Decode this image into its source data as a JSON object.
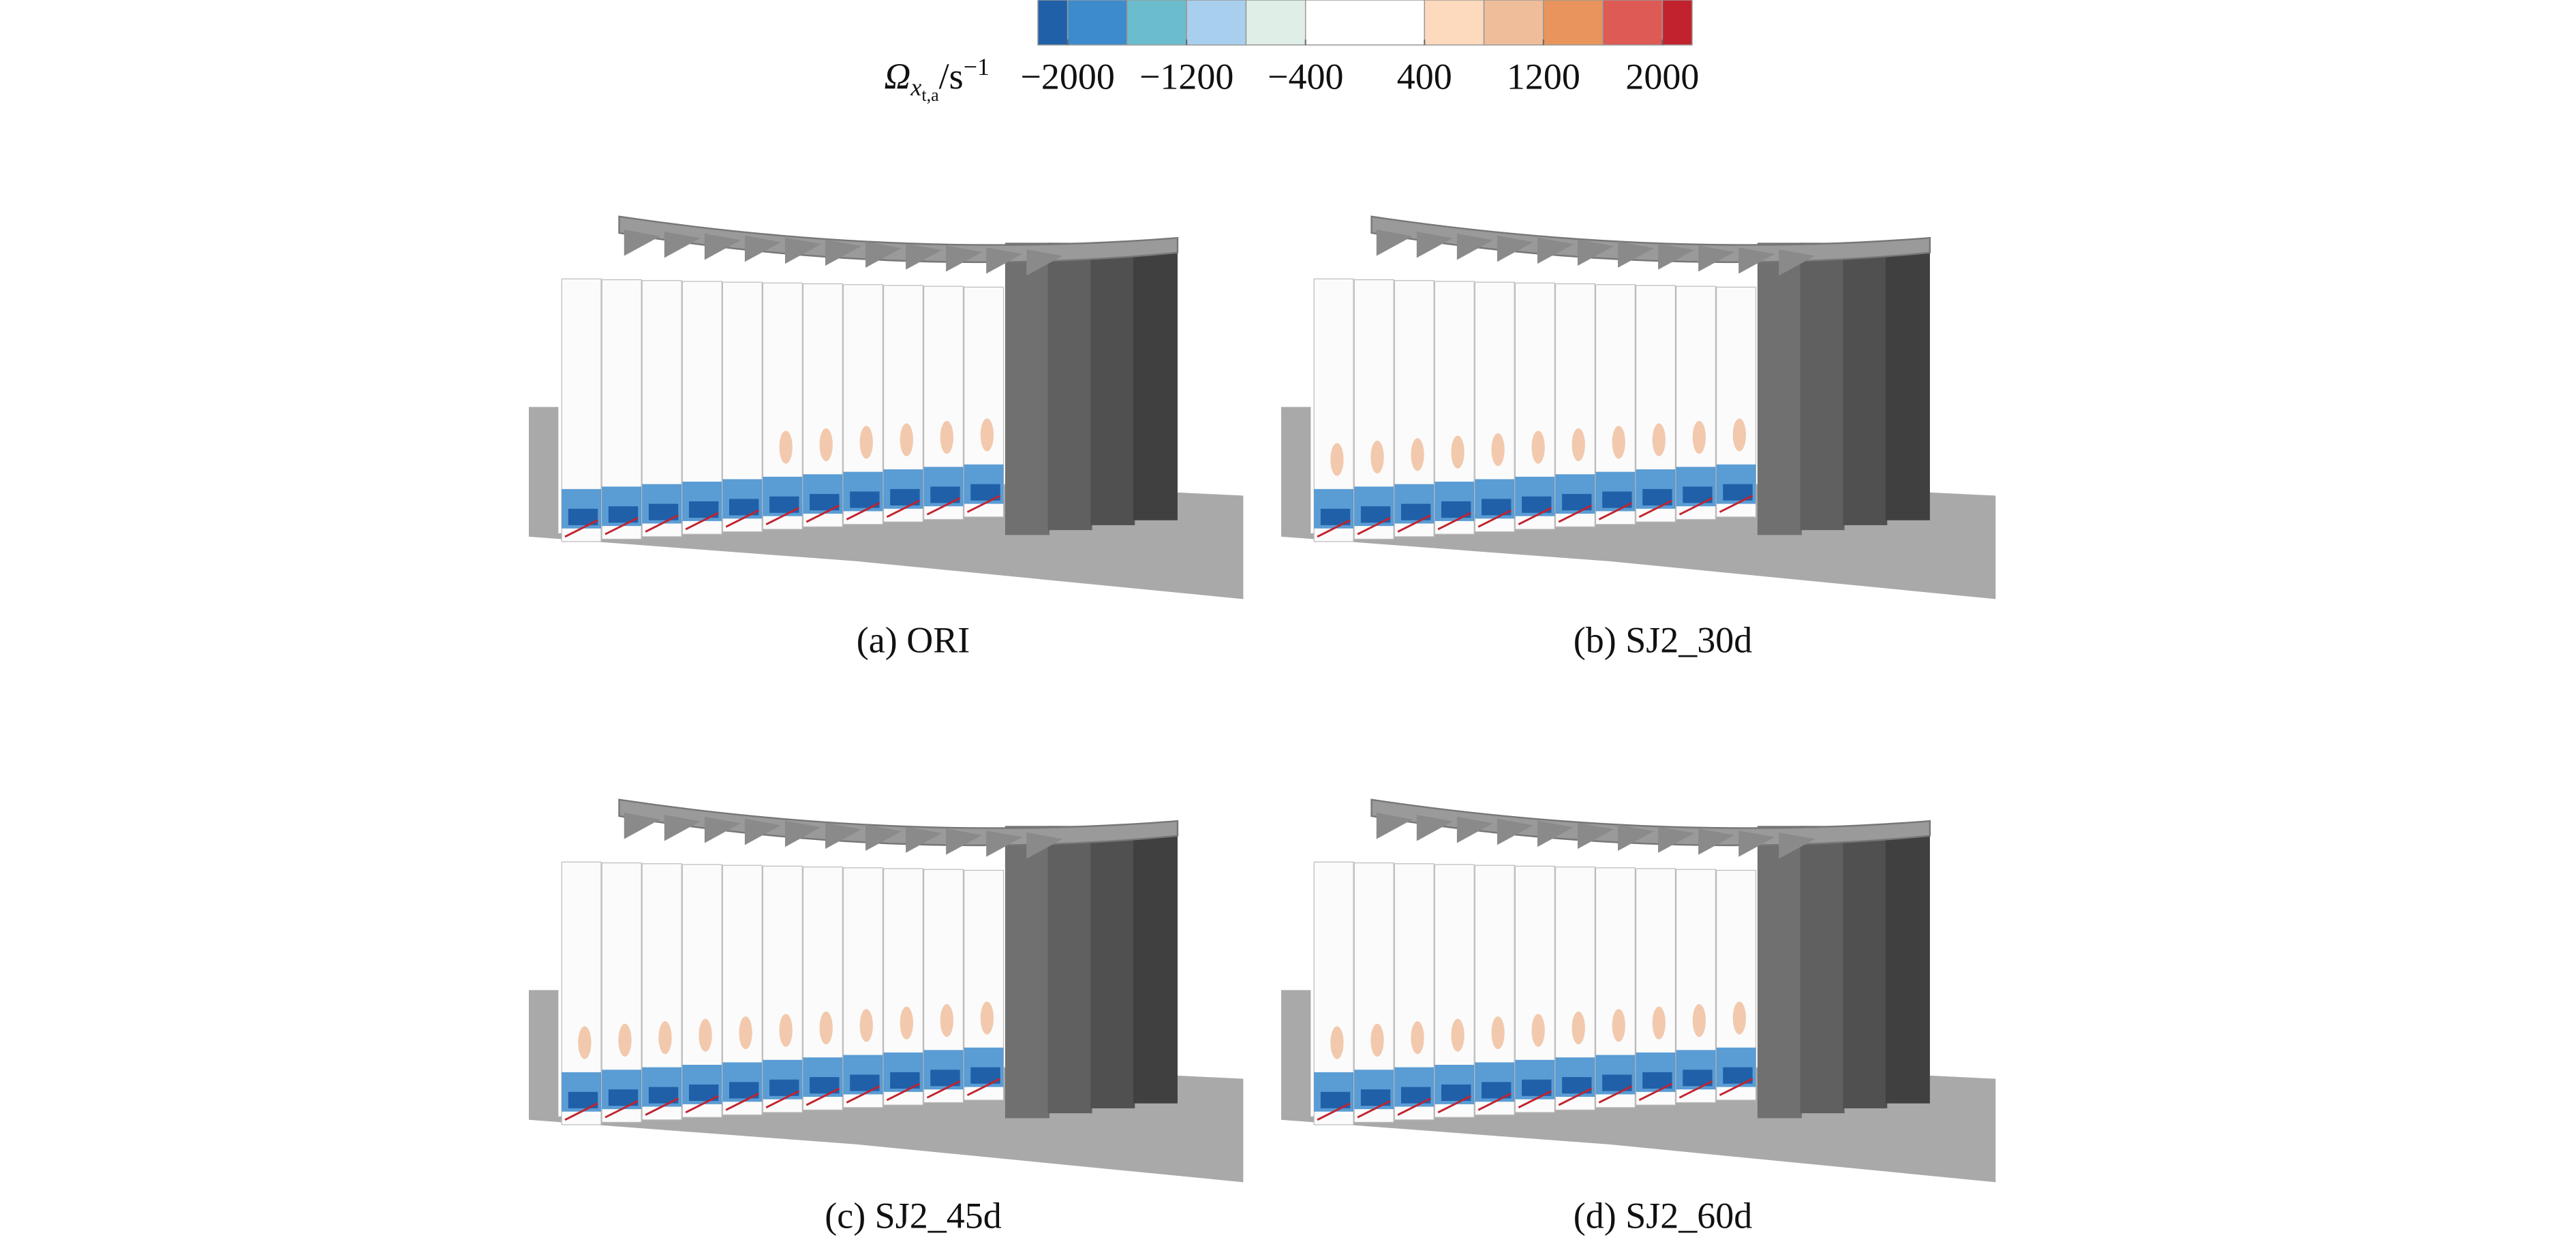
{
  "colorbar": {
    "symbol": "Ω",
    "subscript": "x",
    "sub_subscript": "t,a",
    "unit": "/s",
    "unit_exponent": "−1",
    "lim": [
      -2200,
      2200
    ],
    "boundaries": [
      -2000,
      -1600,
      -1200,
      -800,
      -400,
      400,
      800,
      1200,
      1600,
      2000
    ],
    "colors": [
      "#2060a8",
      "#3d8bcc",
      "#6bbccc",
      "#a9cfee",
      "#dfeee6",
      "#ffffff",
      "#fdd9bd",
      "#f0bd9a",
      "#e8945c",
      "#dd5a55",
      "#c2222e"
    ],
    "ticks": [
      {
        "value": -2000,
        "label": "−2000"
      },
      {
        "value": -1200,
        "label": "−1200"
      },
      {
        "value": -400,
        "label": "−400"
      },
      400,
      1200,
      2000
    ]
  },
  "panels": [
    {
      "caption": "(a) ORI"
    },
    {
      "caption": "(b) SJ2_30d"
    },
    {
      "caption": "(c) SJ2_45d"
    },
    {
      "caption": "(d) SJ2_60d"
    }
  ]
}
